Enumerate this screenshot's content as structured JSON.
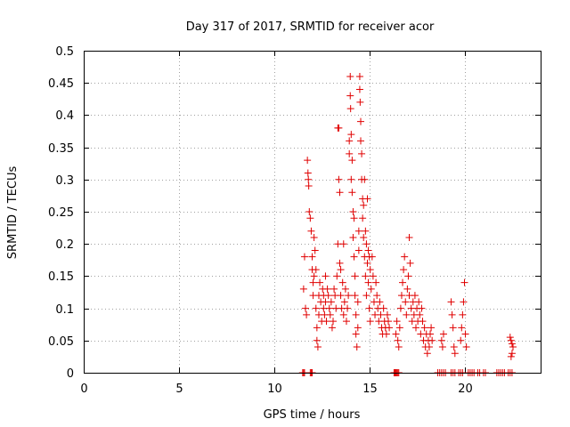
{
  "chart_data": {
    "type": "scatter",
    "title": "Day 317 of 2017, SRMTID for receiver acor",
    "xlabel": "GPS time / hours",
    "ylabel": "SRMTID / TECUs",
    "xlim": [
      0,
      24
    ],
    "ylim": [
      0,
      0.5
    ],
    "xticks": [
      0,
      5,
      10,
      15,
      20
    ],
    "xtick_labels": [
      "0",
      "5",
      "10",
      "15",
      "20"
    ],
    "yticks": [
      0,
      0.05,
      0.1,
      0.15,
      0.2,
      0.25,
      0.3,
      0.35,
      0.4,
      0.45,
      0.5
    ],
    "ytick_labels": [
      "0",
      "0.05",
      "0.1",
      "0.15",
      "0.2",
      "0.25",
      "0.3",
      "0.35",
      "0.4",
      "0.45",
      "0.5"
    ],
    "grid": true,
    "marker": "plus",
    "color": "#e00000",
    "series": [
      {
        "name": "acor",
        "points": [
          [
            11.55,
            0.13
          ],
          [
            11.6,
            0.18
          ],
          [
            11.65,
            0.1
          ],
          [
            11.7,
            0.09
          ],
          [
            11.75,
            0.33
          ],
          [
            11.78,
            0.31
          ],
          [
            11.8,
            0.3
          ],
          [
            11.82,
            0.29
          ],
          [
            11.85,
            0.25
          ],
          [
            11.9,
            0.24
          ],
          [
            11.95,
            0.22
          ],
          [
            12.0,
            0.18
          ],
          [
            12.0,
            0.16
          ],
          [
            12.05,
            0.14
          ],
          [
            12.05,
            0.12
          ],
          [
            12.1,
            0.21
          ],
          [
            12.1,
            0.15
          ],
          [
            12.15,
            0.19
          ],
          [
            12.2,
            0.16
          ],
          [
            12.2,
            0.1
          ],
          [
            12.25,
            0.07
          ],
          [
            12.25,
            0.05
          ],
          [
            12.3,
            0.04
          ],
          [
            12.35,
            0.09
          ],
          [
            12.35,
            0.12
          ],
          [
            12.4,
            0.14
          ],
          [
            12.45,
            0.11
          ],
          [
            12.5,
            0.08
          ],
          [
            12.55,
            0.13
          ],
          [
            12.6,
            0.1
          ],
          [
            12.6,
            0.12
          ],
          [
            12.65,
            0.09
          ],
          [
            12.7,
            0.15
          ],
          [
            12.7,
            0.11
          ],
          [
            12.75,
            0.08
          ],
          [
            12.8,
            0.13
          ],
          [
            12.85,
            0.12
          ],
          [
            12.9,
            0.1
          ],
          [
            12.95,
            0.09
          ],
          [
            13.0,
            0.11
          ],
          [
            13.05,
            0.07
          ],
          [
            13.1,
            0.08
          ],
          [
            13.15,
            0.13
          ],
          [
            13.2,
            0.12
          ],
          [
            13.25,
            0.1
          ],
          [
            13.3,
            0.15
          ],
          [
            13.35,
            0.2
          ],
          [
            13.35,
            0.38
          ],
          [
            13.4,
            0.38
          ],
          [
            13.4,
            0.3
          ],
          [
            13.45,
            0.28
          ],
          [
            13.45,
            0.17
          ],
          [
            13.5,
            0.16
          ],
          [
            13.5,
            0.12
          ],
          [
            13.55,
            0.1
          ],
          [
            13.6,
            0.14
          ],
          [
            13.65,
            0.2
          ],
          [
            13.65,
            0.09
          ],
          [
            13.7,
            0.11
          ],
          [
            13.75,
            0.13
          ],
          [
            13.8,
            0.08
          ],
          [
            13.85,
            0.1
          ],
          [
            13.9,
            0.12
          ],
          [
            13.95,
            0.36
          ],
          [
            13.95,
            0.34
          ],
          [
            14.0,
            0.46
          ],
          [
            14.0,
            0.43
          ],
          [
            14.02,
            0.41
          ],
          [
            14.05,
            0.37
          ],
          [
            14.05,
            0.3
          ],
          [
            14.1,
            0.33
          ],
          [
            14.1,
            0.28
          ],
          [
            14.15,
            0.25
          ],
          [
            14.15,
            0.21
          ],
          [
            14.2,
            0.24
          ],
          [
            14.2,
            0.18
          ],
          [
            14.25,
            0.15
          ],
          [
            14.25,
            0.12
          ],
          [
            14.3,
            0.09
          ],
          [
            14.3,
            0.06
          ],
          [
            14.35,
            0.04
          ],
          [
            14.4,
            0.07
          ],
          [
            14.4,
            0.11
          ],
          [
            14.45,
            0.19
          ],
          [
            14.45,
            0.22
          ],
          [
            14.5,
            0.46
          ],
          [
            14.5,
            0.44
          ],
          [
            14.52,
            0.42
          ],
          [
            14.55,
            0.39
          ],
          [
            14.55,
            0.36
          ],
          [
            14.6,
            0.34
          ],
          [
            14.6,
            0.3
          ],
          [
            14.65,
            0.27
          ],
          [
            14.65,
            0.24
          ],
          [
            14.7,
            0.26
          ],
          [
            14.7,
            0.21
          ],
          [
            14.75,
            0.3
          ],
          [
            14.75,
            0.18
          ],
          [
            14.8,
            0.22
          ],
          [
            14.8,
            0.15
          ],
          [
            14.85,
            0.2
          ],
          [
            14.85,
            0.12
          ],
          [
            14.9,
            0.27
          ],
          [
            14.9,
            0.17
          ],
          [
            14.95,
            0.19
          ],
          [
            14.95,
            0.14
          ],
          [
            15.0,
            0.18
          ],
          [
            15.0,
            0.1
          ],
          [
            15.05,
            0.16
          ],
          [
            15.05,
            0.08
          ],
          [
            15.1,
            0.13
          ],
          [
            15.15,
            0.18
          ],
          [
            15.2,
            0.15
          ],
          [
            15.25,
            0.11
          ],
          [
            15.3,
            0.09
          ],
          [
            15.35,
            0.14
          ],
          [
            15.4,
            0.12
          ],
          [
            15.45,
            0.1
          ],
          [
            15.5,
            0.08
          ],
          [
            15.55,
            0.11
          ],
          [
            15.6,
            0.09
          ],
          [
            15.65,
            0.07
          ],
          [
            15.7,
            0.06
          ],
          [
            15.75,
            0.1
          ],
          [
            15.8,
            0.08
          ],
          [
            15.85,
            0.07
          ],
          [
            15.9,
            0.06
          ],
          [
            15.95,
            0.09
          ],
          [
            16.0,
            0.08
          ],
          [
            16.05,
            0.07
          ],
          [
            16.4,
            0.06
          ],
          [
            16.45,
            0.08
          ],
          [
            16.5,
            0.05
          ],
          [
            16.55,
            0.04
          ],
          [
            16.6,
            0.07
          ],
          [
            16.65,
            0.1
          ],
          [
            16.7,
            0.12
          ],
          [
            16.75,
            0.14
          ],
          [
            16.8,
            0.16
          ],
          [
            16.85,
            0.18
          ],
          [
            16.9,
            0.11
          ],
          [
            16.95,
            0.09
          ],
          [
            17.0,
            0.13
          ],
          [
            17.05,
            0.15
          ],
          [
            17.1,
            0.21
          ],
          [
            17.1,
            0.12
          ],
          [
            17.15,
            0.17
          ],
          [
            17.2,
            0.1
          ],
          [
            17.25,
            0.08
          ],
          [
            17.3,
            0.11
          ],
          [
            17.35,
            0.09
          ],
          [
            17.4,
            0.12
          ],
          [
            17.45,
            0.07
          ],
          [
            17.5,
            0.1
          ],
          [
            17.55,
            0.08
          ],
          [
            17.6,
            0.11
          ],
          [
            17.65,
            0.09
          ],
          [
            17.7,
            0.06
          ],
          [
            17.75,
            0.1
          ],
          [
            17.8,
            0.08
          ],
          [
            17.85,
            0.05
          ],
          [
            17.9,
            0.07
          ],
          [
            17.95,
            0.04
          ],
          [
            18.0,
            0.06
          ],
          [
            18.05,
            0.03
          ],
          [
            18.1,
            0.05
          ],
          [
            18.15,
            0.04
          ],
          [
            18.2,
            0.06
          ],
          [
            18.25,
            0.07
          ],
          [
            18.3,
            0.05
          ],
          [
            18.8,
            0.05
          ],
          [
            18.85,
            0.04
          ],
          [
            18.9,
            0.06
          ],
          [
            19.3,
            0.11
          ],
          [
            19.35,
            0.09
          ],
          [
            19.4,
            0.07
          ],
          [
            19.45,
            0.04
          ],
          [
            19.5,
            0.03
          ],
          [
            19.8,
            0.05
          ],
          [
            19.85,
            0.07
          ],
          [
            19.9,
            0.09
          ],
          [
            19.95,
            0.11
          ],
          [
            20.0,
            0.14
          ],
          [
            20.05,
            0.06
          ],
          [
            20.1,
            0.04
          ],
          [
            22.4,
            0.055
          ],
          [
            22.45,
            0.05
          ],
          [
            22.5,
            0.045
          ],
          [
            22.55,
            0.04
          ],
          [
            22.5,
            0.03
          ],
          [
            22.45,
            0.025
          ],
          [
            11.5,
            0.0
          ],
          [
            11.55,
            0.0
          ],
          [
            11.6,
            0.0
          ],
          [
            11.9,
            0.0
          ],
          [
            11.95,
            0.0
          ],
          [
            12.0,
            0.0
          ],
          [
            16.3,
            0.0
          ],
          [
            16.35,
            0.0
          ],
          [
            16.4,
            0.0
          ],
          [
            16.45,
            0.0
          ],
          [
            16.5,
            0.0
          ],
          [
            16.55,
            0.0
          ],
          [
            18.6,
            0.0
          ],
          [
            18.7,
            0.0
          ],
          [
            18.8,
            0.0
          ],
          [
            18.9,
            0.0
          ],
          [
            19.0,
            0.0
          ],
          [
            19.3,
            0.0
          ],
          [
            19.4,
            0.0
          ],
          [
            19.5,
            0.0
          ],
          [
            19.7,
            0.0
          ],
          [
            19.8,
            0.0
          ],
          [
            19.9,
            0.0
          ],
          [
            20.2,
            0.0
          ],
          [
            20.3,
            0.0
          ],
          [
            20.4,
            0.0
          ],
          [
            20.5,
            0.0
          ],
          [
            20.7,
            0.0
          ],
          [
            20.8,
            0.0
          ],
          [
            21.0,
            0.0
          ],
          [
            21.1,
            0.0
          ],
          [
            21.7,
            0.0
          ],
          [
            21.8,
            0.0
          ],
          [
            21.9,
            0.0
          ],
          [
            22.0,
            0.0
          ],
          [
            22.1,
            0.0
          ],
          [
            22.3,
            0.0
          ],
          [
            22.4,
            0.0
          ],
          [
            22.5,
            0.0
          ]
        ]
      }
    ]
  }
}
